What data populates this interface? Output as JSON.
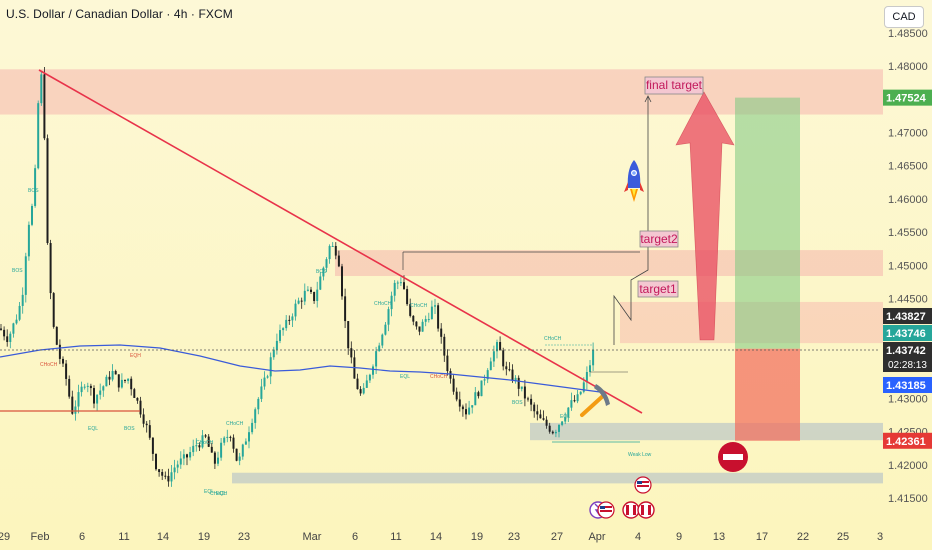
{
  "header": {
    "title": "U.S. Dollar / Canadian Dollar · 4h · FXCM",
    "currency": "CAD"
  },
  "chart_data": {
    "type": "candlestick",
    "y_axis": {
      "range": [
        1.412,
        1.483
      ],
      "ticks": [
        "1.48500",
        "1.48000",
        "1.47500",
        "1.47000",
        "1.46500",
        "1.46000",
        "1.45500",
        "1.45000",
        "1.44500",
        "1.44000",
        "1.43500",
        "1.43000",
        "1.42500",
        "1.42000",
        "1.41500"
      ]
    },
    "x_axis": {
      "ticks": [
        "29",
        "Feb",
        "6",
        "11",
        "14",
        "19",
        "23",
        "Mar",
        "6",
        "11",
        "14",
        "19",
        "23",
        "27",
        "Apr",
        "4",
        "9",
        "13",
        "17",
        "22",
        "25",
        "3"
      ]
    },
    "price_tags": [
      {
        "label": "1.47524",
        "value": 1.47524,
        "bg": "#4caf50"
      },
      {
        "label": "1.43827",
        "value": 1.43827,
        "bg": "#2e2e2e"
      },
      {
        "label": "1.43746",
        "value": 1.43746,
        "bg": "#26a69a"
      },
      {
        "label": "1.43742",
        "value": 1.43742,
        "bg": "#2e2e2e",
        "sub": "02:28:13"
      },
      {
        "label": "1.43185",
        "value": 1.43185,
        "bg": "#2962ff"
      },
      {
        "label": "1.42361",
        "value": 1.42361,
        "bg": "#e53935"
      }
    ],
    "annotations": {
      "final_target": "final target",
      "target2": "target2",
      "target1": "target1",
      "weak_low": "Weak Low",
      "structure_labels": [
        "BOS",
        "BOS",
        "BOS",
        "BOS",
        "BOS",
        "CHoCH",
        "CHoCH",
        "CHoCH",
        "CHoCH",
        "CHoCH",
        "CHoCH",
        "CHoCH",
        "CHoCH",
        "EQH",
        "EQL",
        "EQL",
        "EQL",
        "EQL",
        "EQL"
      ]
    },
    "zones": {
      "supply_top": [
        1.4727,
        1.4795
      ],
      "resistance_1": [
        1.4484,
        1.4523
      ],
      "resistance_2": [
        1.4383,
        1.4445
      ],
      "support": [
        1.4237,
        1.4263
      ],
      "demand_low": [
        1.4172,
        1.4188
      ],
      "take_profit": [
        1.43746,
        1.47524
      ],
      "stop_loss": [
        1.42361,
        1.43746
      ]
    },
    "colors": {
      "bull": "#26a69a",
      "bear": "#1e1e1e",
      "trendline": "#e8334a",
      "ema": "#3a5bd9",
      "target_arrow": "#e84a5f"
    }
  }
}
